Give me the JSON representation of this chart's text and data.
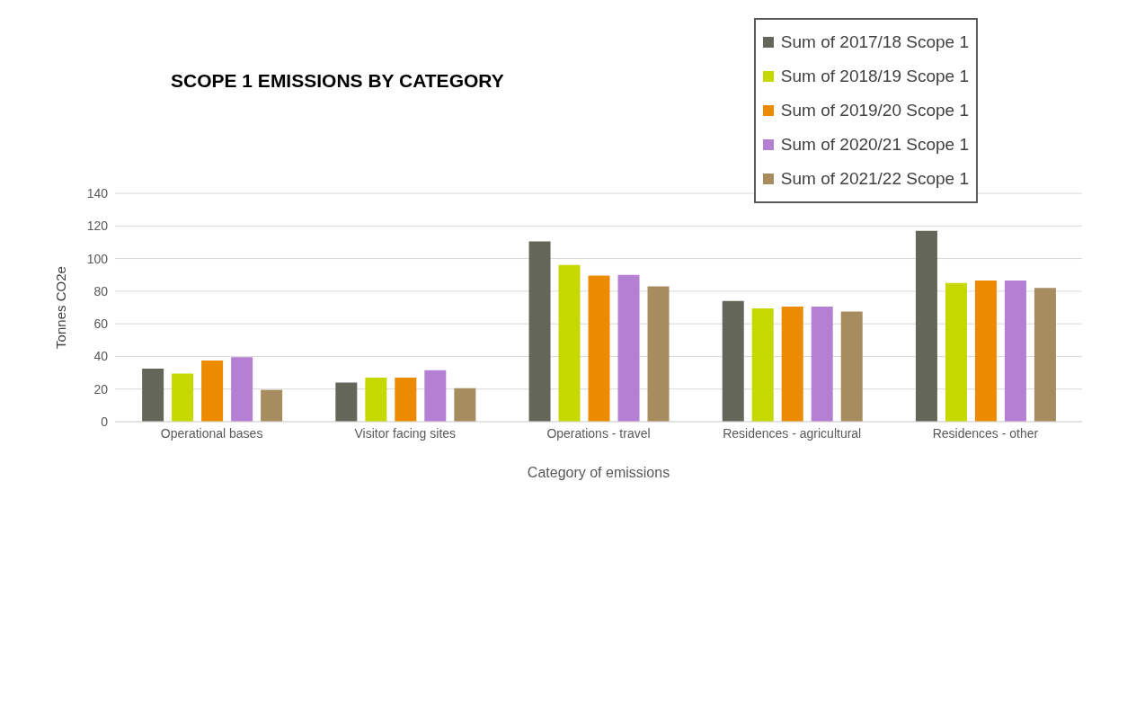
{
  "chart_data": {
    "type": "bar",
    "title": "SCOPE 1 EMISSIONS BY CATEGORY",
    "xlabel": "Category of emissions",
    "ylabel": "Tonnes CO2e",
    "categories": [
      "Operational bases",
      "Visitor facing sites",
      "Operations - travel",
      "Residences - agricultural",
      "Residences - other"
    ],
    "series": [
      {
        "name": "Sum of 2017/18 Scope 1",
        "color": "#646659",
        "values": [
          32.5,
          24,
          110.5,
          74,
          117
        ]
      },
      {
        "name": "Sum of 2018/19 Scope 1",
        "color": "#c5d800",
        "values": [
          29.5,
          27,
          96,
          69.5,
          85
        ]
      },
      {
        "name": "Sum of 2019/20 Scope 1",
        "color": "#ed8b00",
        "values": [
          37.5,
          27,
          89.5,
          70.5,
          86.5
        ]
      },
      {
        "name": "Sum of 2020/21 Scope 1",
        "color": "#b57fd4",
        "values": [
          39.5,
          31.5,
          90,
          70.5,
          86.5
        ]
      },
      {
        "name": "Sum of 2021/22 Scope 1",
        "color": "#a68c5f",
        "values": [
          19.5,
          20.5,
          83,
          67.5,
          82
        ]
      }
    ],
    "ylim": [
      0,
      140
    ],
    "yticks": [
      0,
      20,
      40,
      60,
      80,
      100,
      120,
      140
    ],
    "grid": "y",
    "legend": "top right"
  }
}
